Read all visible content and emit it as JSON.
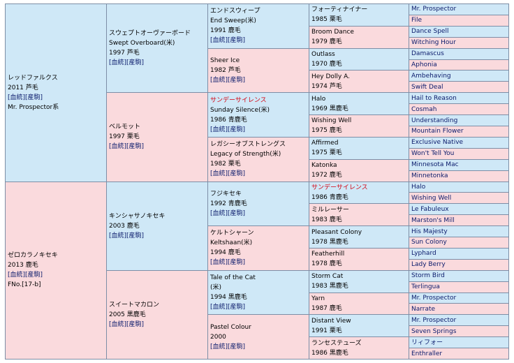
{
  "link_labels": {
    "pedigree": "[血統]",
    "foal": "[産駒]"
  },
  "gen1": [
    {
      "name": "レッドファルクス",
      "info": "2011 芦毛",
      "extra": "Mr. Prospector系",
      "links": true
    },
    {
      "name": "ゼロカラノキセキ",
      "info": "2013 鹿毛",
      "extra": "FNo.[17-b]",
      "links": true
    }
  ],
  "gen2": [
    {
      "name": "スウェプトオーヴァーボード",
      "en": "Swept Overboard(米)",
      "info": "1997 芦毛",
      "links": true
    },
    {
      "name": "ベルモット",
      "info": "1997 栗毛",
      "links": true
    },
    {
      "name": "キンシャサノキセキ",
      "info": "2003 鹿毛",
      "links": true
    },
    {
      "name": "スイートマカロン",
      "info": "2005 黒鹿毛",
      "links": true
    }
  ],
  "gen3": [
    {
      "name": "エンドスウィープ",
      "en": "End Sweep(米)",
      "info": "1991 鹿毛",
      "links": true
    },
    {
      "name": "Sheer Ice",
      "info": "1982 芦毛",
      "links": true
    },
    {
      "name": "サンデーサイレンス",
      "en": "Sunday Silence(米)",
      "info": "1986 青鹿毛",
      "links": true
    },
    {
      "name": "レガシーオブストレングス",
      "en": "Legacy of Strength(米)",
      "info": "1982 栗毛",
      "links": true
    },
    {
      "name": "フジキセキ",
      "info": "1992 青鹿毛",
      "links": true
    },
    {
      "name": "ケルトシャーン",
      "en": "Keltshaan(米)",
      "info": "1994 鹿毛",
      "links": true
    },
    {
      "name": "Tale of the Cat",
      "en": "(米)",
      "info": "1994 黒鹿毛",
      "links": true
    },
    {
      "name": "Pastel Colour",
      "info": "2000",
      "links": true
    }
  ],
  "gen4": [
    {
      "name": "フォーティナイナー",
      "info": "1985 栗毛"
    },
    {
      "name": "Broom Dance",
      "info": "1979 鹿毛"
    },
    {
      "name": "Outlass",
      "info": "1970 鹿毛"
    },
    {
      "name": "Hey Dolly A.",
      "info": "1974 芦毛"
    },
    {
      "name": "Halo",
      "info": "1969 黒鹿毛"
    },
    {
      "name": "Wishing Well",
      "info": "1975 鹿毛"
    },
    {
      "name": "Affirmed",
      "info": "1975 栗毛"
    },
    {
      "name": "Katonka",
      "info": "1972 鹿毛"
    },
    {
      "name": "サンデーサイレンス",
      "info": "1986 青鹿毛"
    },
    {
      "name": "ミルレーサー",
      "info": "1983 鹿毛"
    },
    {
      "name": "Pleasant Colony",
      "info": "1978 黒鹿毛"
    },
    {
      "name": "Featherhill",
      "info": "1978 鹿毛"
    },
    {
      "name": "Storm Cat",
      "info": "1983 黒鹿毛"
    },
    {
      "name": "Yarn",
      "info": "1987 鹿毛"
    },
    {
      "name": "Distant View",
      "info": "1991 栗毛"
    },
    {
      "name": "ランセステューズ",
      "info": "1986 黒鹿毛"
    }
  ],
  "gen5": [
    "Mr. Prospector",
    "File",
    "Dance Spell",
    "Witching Hour",
    "Damascus",
    "Aphonia",
    "Ambehaving",
    "Swift Deal",
    "Hail to Reason",
    "Cosmah",
    "Understanding",
    "Mountain Flower",
    "Exclusive Native",
    "Won't Tell You",
    "Minnesota Mac",
    "Minnetonka",
    "Halo",
    "Wishing Well",
    "Le Fabuleux",
    "Marston's Mill",
    "His Majesty",
    "Sun Colony",
    "Lyphard",
    "Lady Berry",
    "Storm Bird",
    "Terlingua",
    "Mr. Prospector",
    "Narrate",
    "Mr. Prospector",
    "Seven Springs",
    "リィフォー",
    "Enthraller"
  ],
  "colors": {
    "sire_bg": "#cfe8f7",
    "dam_bg": "#fadadd",
    "highlight": "#d4000f",
    "link": "#0a1a6b",
    "border": "#7d8ea6"
  }
}
